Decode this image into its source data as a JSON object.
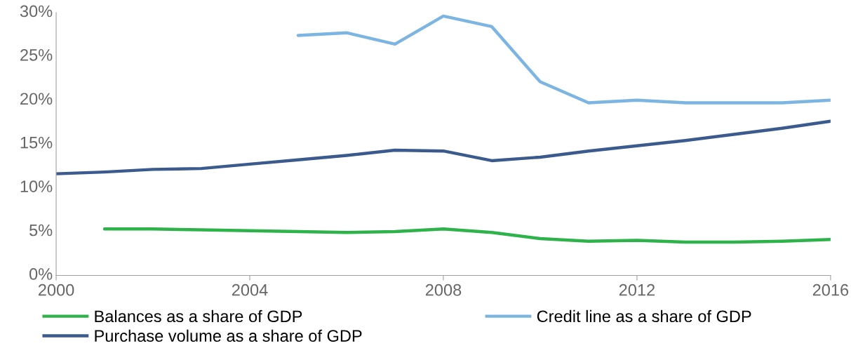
{
  "chart_data": {
    "type": "line",
    "x": [
      2000,
      2001,
      2002,
      2003,
      2004,
      2005,
      2006,
      2007,
      2008,
      2009,
      2010,
      2011,
      2012,
      2013,
      2014,
      2015,
      2016
    ],
    "series": [
      {
        "name": "Balances as a share of GDP",
        "color": "#2eb24a",
        "values": [
          null,
          5.3,
          5.3,
          5.2,
          5.1,
          5.0,
          4.9,
          5.0,
          5.3,
          4.9,
          4.2,
          3.9,
          4.0,
          3.8,
          3.8,
          3.9,
          4.1
        ]
      },
      {
        "name": "Purchase volume as a share of GDP",
        "color": "#3b5b8e",
        "values": [
          11.6,
          11.8,
          12.1,
          12.2,
          12.7,
          13.2,
          13.7,
          14.3,
          14.2,
          13.1,
          13.5,
          14.2,
          14.8,
          15.4,
          16.1,
          16.8,
          17.6
        ]
      },
      {
        "name": "Credit line as a share of GDP",
        "color": "#7cb4e2",
        "values": [
          null,
          null,
          null,
          null,
          null,
          27.4,
          27.7,
          26.4,
          29.6,
          28.4,
          22.1,
          19.7,
          20.0,
          19.7,
          19.7,
          19.7,
          20.0
        ]
      }
    ],
    "xlim": [
      2000,
      2016
    ],
    "xticks": [
      2000,
      2004,
      2008,
      2012,
      2016
    ],
    "ylim": [
      0,
      30
    ],
    "yticks": [
      {
        "value": 0,
        "label": "0%"
      },
      {
        "value": 5,
        "label": "5%"
      },
      {
        "value": 10,
        "label": "10%"
      },
      {
        "value": 15,
        "label": "15%"
      },
      {
        "value": 20,
        "label": "20%"
      },
      {
        "value": 25,
        "label": "25%"
      },
      {
        "value": 30,
        "label": "30%"
      }
    ],
    "grid": false,
    "legend": "bottom",
    "marker": "none",
    "line_style": "solid"
  }
}
